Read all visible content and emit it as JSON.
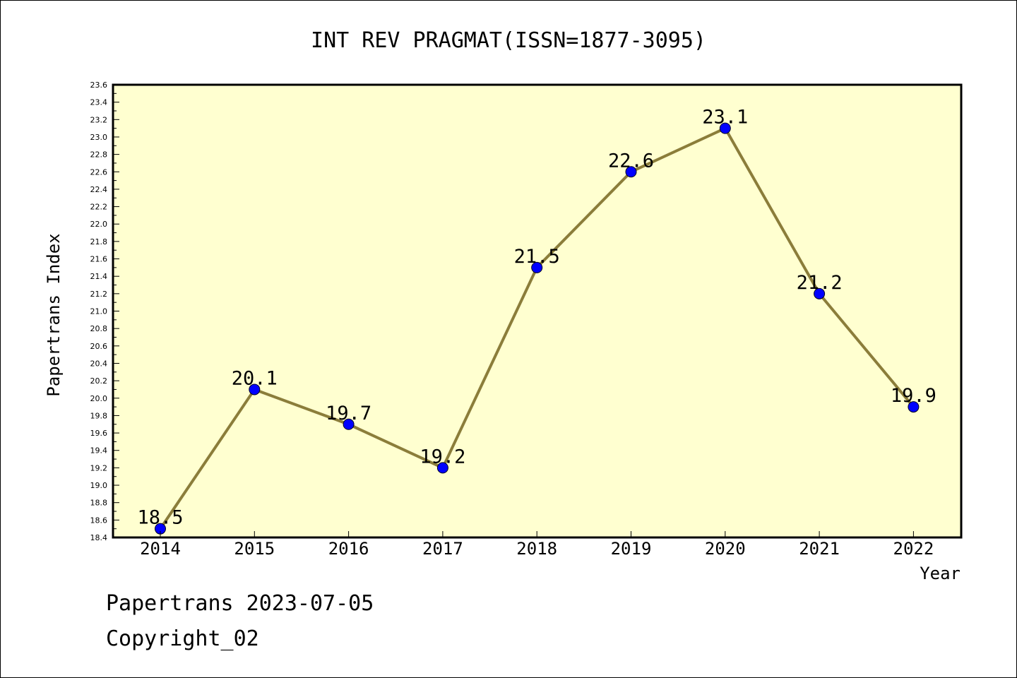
{
  "chart_data": {
    "type": "line",
    "title": "INT REV PRAGMAT(ISSN=1877-3095)",
    "xlabel": "Year",
    "ylabel": "Papertrans Index",
    "categories": [
      "2014",
      "2015",
      "2016",
      "2017",
      "2018",
      "2019",
      "2020",
      "2021",
      "2022"
    ],
    "values": [
      18.5,
      20.1,
      19.7,
      19.2,
      21.5,
      22.6,
      23.1,
      21.2,
      19.9
    ],
    "value_labels": [
      "18.5",
      "20.1",
      "19.7",
      "19.2",
      "21.5",
      "22.6",
      "23.1",
      "21.2",
      "19.9"
    ],
    "ylim": [
      18.4,
      23.6
    ],
    "y_major_step": 0.2,
    "grid": false,
    "colors": {
      "plot_background": "#ffffd0",
      "line": "#8b7d3a",
      "marker": "#0000ff"
    }
  },
  "footer": {
    "line1": "Papertrans 2023-07-05",
    "line2": "Copyright_02"
  }
}
